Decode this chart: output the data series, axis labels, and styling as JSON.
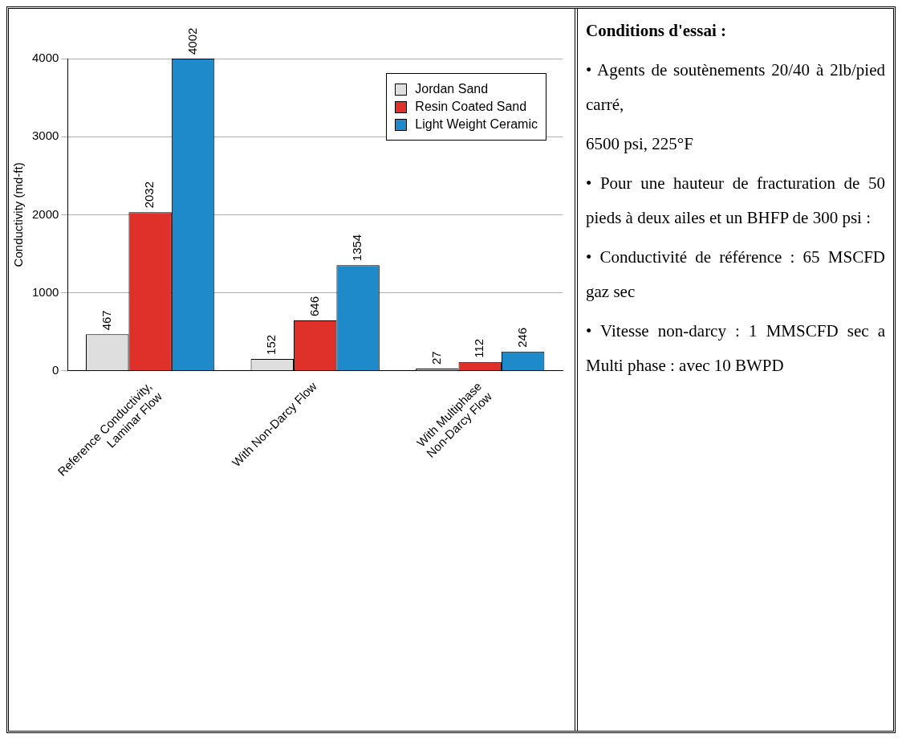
{
  "chart_data": {
    "type": "bar",
    "ylabel": "Conductivity (md-ft)",
    "categories": [
      "Reference Conductivity,\nLaminar Flow",
      "With Non-Darcy Flow",
      "With Multiphase\nNon-Darcy Flow"
    ],
    "series": [
      {
        "name": "Jordan Sand",
        "color": "#dedede",
        "values": [
          467,
          152,
          27
        ]
      },
      {
        "name": "Resin Coated Sand",
        "color": "#e0302a",
        "values": [
          2032,
          646,
          112
        ]
      },
      {
        "name": "Light Weight Ceramic",
        "color": "#1f8ac9",
        "values": [
          4002,
          1354,
          246
        ]
      }
    ],
    "ylim": [
      0,
      4002
    ],
    "yticks": [
      0,
      1000,
      2000,
      3000,
      4000
    ],
    "grid": "y",
    "legend": "top right",
    "data_labels": true,
    "annotations": [
      "Conditions d'essai :",
      "• Agents de soutènements 20/40 à 2lb/pied carré,",
      "6500 psi, 225°F",
      "• Pour une hauteur de fracturation de 50 pieds à deux ailes et un BHFP de 300 psi :",
      "• Conductivité de référence : 65 MSCFD gaz sec",
      "• Vitesse non-darcy : 1 MMSCFD sec a Multi phase : avec 10 BWPD"
    ]
  }
}
